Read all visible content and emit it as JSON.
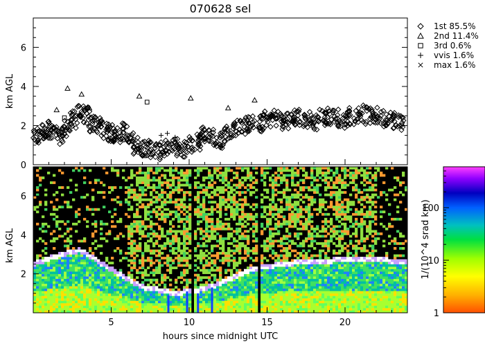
{
  "title": "070628 sel",
  "chart_data": [
    {
      "type": "scatter",
      "panel": "top",
      "ylabel": "km AGL",
      "xlim": [
        0,
        24
      ],
      "ylim": [
        0,
        7.5
      ],
      "yticks": [
        0,
        2,
        4,
        6
      ],
      "marker_legend": [
        {
          "symbol": "diamond",
          "label": "1st 85.5%"
        },
        {
          "symbol": "triangle",
          "label": "2nd 11.4%"
        },
        {
          "symbol": "square",
          "label": "3rd  0.6%"
        },
        {
          "symbol": "plus",
          "label": "vvis   1.6%"
        },
        {
          "symbol": "cross",
          "label": "max   1.6%"
        }
      ],
      "series": [
        {
          "name": "1st",
          "x": [
            0.2,
            0.6,
            1.0,
            1.4,
            1.8,
            2.2,
            2.6,
            3.0,
            3.4,
            3.8,
            4.2,
            4.6,
            5.0,
            5.4,
            5.8,
            6.2,
            6.6,
            7.0,
            7.5,
            8.0,
            8.5,
            9.0,
            9.5,
            10.0,
            10.5,
            11.0,
            11.5,
            12.0,
            12.5,
            13.0,
            13.5,
            14.0,
            14.5,
            15.0,
            15.5,
            16.0,
            16.5,
            17.0,
            17.5,
            18.0,
            18.5,
            19.0,
            19.5,
            20.0,
            20.5,
            21.0,
            21.5,
            22.0,
            22.5,
            23.0,
            23.5
          ],
          "y": [
            1.4,
            1.7,
            1.8,
            1.6,
            1.5,
            1.9,
            2.3,
            2.6,
            2.5,
            2.1,
            2.0,
            1.8,
            1.6,
            1.5,
            1.7,
            1.2,
            1.0,
            0.9,
            0.8,
            0.7,
            0.8,
            0.9,
            0.8,
            1.0,
            1.2,
            1.6,
            1.4,
            1.3,
            1.6,
            1.9,
            2.0,
            2.1,
            2.1,
            2.3,
            2.4,
            2.2,
            2.3,
            2.4,
            2.3,
            2.2,
            2.4,
            2.5,
            2.4,
            2.3,
            2.5,
            2.6,
            2.5,
            2.5,
            2.4,
            2.3,
            2.2
          ]
        },
        {
          "name": "2nd",
          "x": [
            1.5,
            2.2,
            3.1,
            3.6,
            6.8,
            10.1,
            12.5,
            14.2
          ],
          "y": [
            2.8,
            3.9,
            3.6,
            2.9,
            3.5,
            3.4,
            2.9,
            3.3
          ]
        },
        {
          "name": "3rd",
          "x": [
            2.0,
            7.3
          ],
          "y": [
            2.4,
            3.2
          ]
        },
        {
          "name": "vvis",
          "x": [
            8.2,
            8.6,
            9.1
          ],
          "y": [
            1.5,
            1.6,
            1.4
          ]
        },
        {
          "name": "max",
          "x": [
            15.4,
            20.1
          ],
          "y": [
            2.6,
            2.4
          ]
        }
      ]
    },
    {
      "type": "heatmap",
      "panel": "bottom",
      "xlabel": "hours since midnight UTC",
      "ylabel": "km AGL",
      "xlim": [
        0,
        24
      ],
      "ylim": [
        0,
        7.5
      ],
      "xticks": [
        5,
        10,
        15,
        20
      ],
      "yticks": [
        2,
        4,
        6
      ],
      "colorbar": {
        "label": "1/(10^4 srad km)",
        "scale": "log",
        "range": [
          1,
          600
        ],
        "ticks": [
          1,
          10,
          100
        ]
      },
      "cloud_base_km": [
        {
          "x": 0,
          "y": 2.4
        },
        {
          "x": 2,
          "y": 2.9
        },
        {
          "x": 3,
          "y": 3.1
        },
        {
          "x": 5,
          "y": 2.1
        },
        {
          "x": 7,
          "y": 1.2
        },
        {
          "x": 9,
          "y": 0.9
        },
        {
          "x": 10.5,
          "y": 1.0
        },
        {
          "x": 12,
          "y": 1.4
        },
        {
          "x": 14,
          "y": 2.1
        },
        {
          "x": 16,
          "y": 2.4
        },
        {
          "x": 18,
          "y": 2.5
        },
        {
          "x": 20,
          "y": 2.6
        },
        {
          "x": 22,
          "y": 2.6
        },
        {
          "x": 24,
          "y": 2.5
        }
      ]
    }
  ]
}
